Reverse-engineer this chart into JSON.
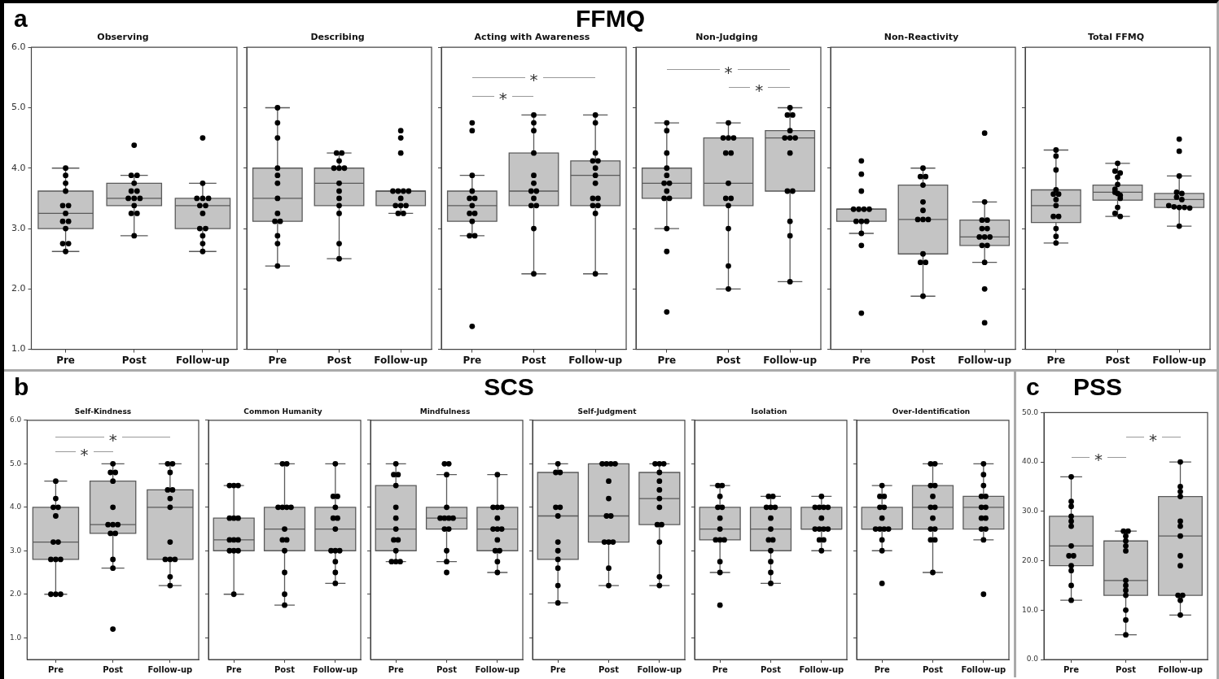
{
  "chart_data": [
    {
      "type": "box",
      "title": "Observing",
      "categories": [
        "Pre",
        "Post",
        "Follow-up"
      ],
      "ylim": [
        1,
        6
      ],
      "yticks": [
        {
          "value": 1,
          "label": "1.0"
        },
        {
          "value": 2,
          "label": "2.0"
        },
        {
          "value": 3,
          "label": "3.0"
        },
        {
          "value": 4,
          "label": "4.0"
        },
        {
          "value": 5,
          "label": "5.0"
        },
        {
          "value": 6,
          "label": "6.0"
        }
      ],
      "annotations": [
        "a",
        "FFMQ"
      ],
      "series": [
        {
          "type": "box",
          "color": "#c4c4c4",
          "boxes": [
            {
              "low": 2.62,
              "q1": 3.0,
              "median": 3.25,
              "q3": 3.62,
              "high": 4.0
            },
            {
              "low": 2.88,
              "q1": 3.38,
              "median": 3.5,
              "q3": 3.75,
              "high": 3.88
            },
            {
              "low": 2.62,
              "q1": 3.0,
              "median": 3.38,
              "q3": 3.5,
              "high": 3.75
            }
          ]
        },
        {
          "type": "scatter",
          "color": "#000000",
          "marker": "circle",
          "x": [
            "Pre",
            "Pre",
            "Pre",
            "Pre",
            "Pre",
            "Pre",
            "Pre",
            "Pre",
            "Pre",
            "Pre",
            "Pre",
            "Pre",
            "Pre",
            "Post",
            "Post",
            "Post",
            "Post",
            "Post",
            "Post",
            "Post",
            "Post",
            "Post",
            "Post",
            "Post",
            "Post",
            "Post",
            "Follow-up",
            "Follow-up",
            "Follow-up",
            "Follow-up",
            "Follow-up",
            "Follow-up",
            "Follow-up",
            "Follow-up",
            "Follow-up",
            "Follow-up",
            "Follow-up",
            "Follow-up",
            "Follow-up"
          ],
          "values": [
            4.0,
            3.88,
            3.75,
            3.62,
            3.38,
            3.38,
            3.25,
            3.12,
            3.12,
            3.0,
            2.75,
            2.75,
            2.62,
            4.38,
            3.88,
            3.88,
            3.75,
            3.62,
            3.62,
            3.5,
            3.5,
            3.5,
            3.38,
            3.25,
            3.25,
            2.88,
            4.5,
            3.75,
            3.5,
            3.5,
            3.5,
            3.38,
            3.38,
            3.25,
            3.0,
            3.0,
            2.88,
            2.75,
            2.62
          ]
        }
      ]
    },
    {
      "type": "box",
      "title": "Describing",
      "categories": [
        "Pre",
        "Post",
        "Follow-up"
      ],
      "ylim": [
        1,
        6
      ],
      "yticks": [
        {
          "value": 1,
          "label": null
        },
        {
          "value": 2,
          "label": null
        },
        {
          "value": 3,
          "label": null
        },
        {
          "value": 4,
          "label": null
        },
        {
          "value": 5,
          "label": null
        },
        {
          "value": 6,
          "label": null
        }
      ],
      "tick_labels": "x",
      "series": [
        {
          "type": "box",
          "color": "#c4c4c4",
          "boxes": [
            {
              "low": 2.38,
              "q1": 3.12,
              "median": 3.5,
              "q3": 4.0,
              "high": 5.0
            },
            {
              "low": 2.5,
              "q1": 3.38,
              "median": 3.75,
              "q3": 4.0,
              "high": 4.25
            },
            {
              "low": 3.25,
              "q1": 3.38,
              "median": 3.62,
              "q3": 3.62,
              "high": 3.62
            }
          ]
        },
        {
          "type": "scatter",
          "color": "#000000",
          "marker": "circle",
          "x": [
            "Pre",
            "Pre",
            "Pre",
            "Pre",
            "Pre",
            "Pre",
            "Pre",
            "Pre",
            "Pre",
            "Pre",
            "Pre",
            "Pre",
            "Pre",
            "Post",
            "Post",
            "Post",
            "Post",
            "Post",
            "Post",
            "Post",
            "Post",
            "Post",
            "Post",
            "Post",
            "Post",
            "Post",
            "Follow-up",
            "Follow-up",
            "Follow-up",
            "Follow-up",
            "Follow-up",
            "Follow-up",
            "Follow-up",
            "Follow-up",
            "Follow-up",
            "Follow-up",
            "Follow-up",
            "Follow-up",
            "Follow-up"
          ],
          "values": [
            5.0,
            4.75,
            4.5,
            4.0,
            3.88,
            3.75,
            3.5,
            3.25,
            3.12,
            3.12,
            2.88,
            2.75,
            2.38,
            4.25,
            4.25,
            4.12,
            4.0,
            4.0,
            4.0,
            3.75,
            3.62,
            3.5,
            3.38,
            3.25,
            2.75,
            2.5,
            4.62,
            4.5,
            4.25,
            3.62,
            3.62,
            3.62,
            3.62,
            3.5,
            3.38,
            3.38,
            3.38,
            3.25,
            3.25
          ]
        }
      ]
    },
    {
      "type": "box",
      "title": "Acting with Awareness",
      "categories": [
        "Pre",
        "Post",
        "Follow-up"
      ],
      "ylim": [
        1,
        6
      ],
      "yticks": [
        {
          "value": 1,
          "label": null
        },
        {
          "value": 2,
          "label": null
        },
        {
          "value": 3,
          "label": null
        },
        {
          "value": 4,
          "label": null
        },
        {
          "value": 5,
          "label": null
        },
        {
          "value": 6,
          "label": null
        }
      ],
      "tick_labels": "x",
      "annotations": [
        "*",
        "*"
      ],
      "series": [
        {
          "type": "box",
          "color": "#c4c4c4",
          "boxes": [
            {
              "low": 2.88,
              "q1": 3.12,
              "median": 3.38,
              "q3": 3.62,
              "high": 3.88
            },
            {
              "low": 2.25,
              "q1": 3.38,
              "median": 3.62,
              "q3": 4.25,
              "high": 4.88
            },
            {
              "low": 2.25,
              "q1": 3.38,
              "median": 3.88,
              "q3": 4.12,
              "high": 4.88
            }
          ]
        },
        {
          "type": "scatter",
          "color": "#000000",
          "marker": "circle",
          "x": [
            "Pre",
            "Pre",
            "Pre",
            "Pre",
            "Pre",
            "Pre",
            "Pre",
            "Pre",
            "Pre",
            "Pre",
            "Pre",
            "Pre",
            "Pre",
            "Post",
            "Post",
            "Post",
            "Post",
            "Post",
            "Post",
            "Post",
            "Post",
            "Post",
            "Post",
            "Post",
            "Post",
            "Post",
            "Follow-up",
            "Follow-up",
            "Follow-up",
            "Follow-up",
            "Follow-up",
            "Follow-up",
            "Follow-up",
            "Follow-up",
            "Follow-up",
            "Follow-up",
            "Follow-up",
            "Follow-up",
            "Follow-up",
            "Follow-up"
          ],
          "values": [
            4.75,
            4.62,
            3.88,
            3.62,
            3.5,
            3.5,
            3.38,
            3.25,
            3.25,
            3.12,
            2.88,
            2.88,
            1.38,
            4.88,
            4.75,
            4.62,
            4.25,
            3.88,
            3.75,
            3.62,
            3.62,
            3.5,
            3.38,
            3.38,
            3.0,
            2.25,
            4.88,
            4.75,
            4.25,
            4.12,
            4.12,
            4.0,
            3.88,
            3.75,
            3.5,
            3.5,
            3.38,
            3.38,
            3.25,
            2.25
          ]
        }
      ]
    },
    {
      "type": "box",
      "title": "Non-Judging",
      "categories": [
        "Pre",
        "Post",
        "Follow-up"
      ],
      "ylim": [
        1,
        6
      ],
      "yticks": [
        {
          "value": 1,
          "label": null
        },
        {
          "value": 2,
          "label": null
        },
        {
          "value": 3,
          "label": null
        },
        {
          "value": 4,
          "label": null
        },
        {
          "value": 5,
          "label": null
        },
        {
          "value": 6,
          "label": null
        }
      ],
      "tick_labels": "x",
      "annotations": [
        "*",
        "*"
      ],
      "series": [
        {
          "type": "box",
          "color": "#c4c4c4",
          "boxes": [
            {
              "low": 3.0,
              "q1": 3.5,
              "median": 3.75,
              "q3": 4.0,
              "high": 4.75
            },
            {
              "low": 2.0,
              "q1": 3.38,
              "median": 3.75,
              "q3": 4.5,
              "high": 4.75
            },
            {
              "low": 2.12,
              "q1": 3.62,
              "median": 4.5,
              "q3": 4.62,
              "high": 5.0
            }
          ]
        },
        {
          "type": "scatter",
          "color": "#000000",
          "marker": "circle",
          "x": [
            "Pre",
            "Pre",
            "Pre",
            "Pre",
            "Pre",
            "Pre",
            "Pre",
            "Pre",
            "Pre",
            "Pre",
            "Pre",
            "Pre",
            "Pre",
            "Post",
            "Post",
            "Post",
            "Post",
            "Post",
            "Post",
            "Post",
            "Post",
            "Post",
            "Post",
            "Post",
            "Post",
            "Post",
            "Follow-up",
            "Follow-up",
            "Follow-up",
            "Follow-up",
            "Follow-up",
            "Follow-up",
            "Follow-up",
            "Follow-up",
            "Follow-up",
            "Follow-up",
            "Follow-up",
            "Follow-up",
            "Follow-up"
          ],
          "values": [
            4.75,
            4.62,
            4.25,
            4.0,
            3.88,
            3.75,
            3.75,
            3.62,
            3.5,
            3.5,
            3.0,
            2.62,
            1.62,
            4.75,
            4.5,
            4.5,
            4.5,
            4.25,
            4.25,
            3.75,
            3.5,
            3.5,
            3.38,
            3.0,
            2.38,
            2.0,
            5.0,
            4.88,
            4.88,
            4.62,
            4.5,
            4.5,
            4.5,
            4.25,
            3.62,
            3.62,
            3.12,
            2.88,
            2.12
          ]
        }
      ]
    },
    {
      "type": "box",
      "title": "Non-Reactivity",
      "categories": [
        "Pre",
        "Post",
        "Follow-up"
      ],
      "ylim": [
        1,
        6
      ],
      "yticks": [
        {
          "value": 1,
          "label": null
        },
        {
          "value": 2,
          "label": null
        },
        {
          "value": 3,
          "label": null
        },
        {
          "value": 4,
          "label": null
        },
        {
          "value": 5,
          "label": null
        },
        {
          "value": 6,
          "label": null
        }
      ],
      "tick_labels": "x",
      "series": [
        {
          "type": "box",
          "color": "#c4c4c4",
          "boxes": [
            {
              "low": 2.92,
              "q1": 3.12,
              "median": 3.32,
              "q3": 3.32,
              "high": 3.32
            },
            {
              "low": 1.88,
              "q1": 2.58,
              "median": 3.15,
              "q3": 3.72,
              "high": 4.0
            },
            {
              "low": 2.44,
              "q1": 2.72,
              "median": 2.86,
              "q3": 3.14,
              "high": 3.44
            }
          ]
        },
        {
          "type": "scatter",
          "color": "#000000",
          "marker": "circle",
          "x": [
            "Pre",
            "Pre",
            "Pre",
            "Pre",
            "Pre",
            "Pre",
            "Pre",
            "Pre",
            "Pre",
            "Pre",
            "Pre",
            "Pre",
            "Pre",
            "Post",
            "Post",
            "Post",
            "Post",
            "Post",
            "Post",
            "Post",
            "Post",
            "Post",
            "Post",
            "Post",
            "Post",
            "Post",
            "Follow-up",
            "Follow-up",
            "Follow-up",
            "Follow-up",
            "Follow-up",
            "Follow-up",
            "Follow-up",
            "Follow-up",
            "Follow-up",
            "Follow-up",
            "Follow-up",
            "Follow-up",
            "Follow-up",
            "Follow-up"
          ],
          "values": [
            4.12,
            3.9,
            3.62,
            3.32,
            3.32,
            3.32,
            3.32,
            3.12,
            3.12,
            3.12,
            2.92,
            2.72,
            1.6,
            4.0,
            3.86,
            3.86,
            3.72,
            3.44,
            3.3,
            3.15,
            3.15,
            3.15,
            2.58,
            2.44,
            2.44,
            1.88,
            4.58,
            3.44,
            3.14,
            3.14,
            3.0,
            3.0,
            2.86,
            2.86,
            2.86,
            2.72,
            2.72,
            2.44,
            2.0,
            1.44
          ]
        }
      ]
    },
    {
      "type": "box",
      "title": "Total FFMQ",
      "categories": [
        "Pre",
        "Post",
        "Follow-up"
      ],
      "ylim": [
        1,
        6
      ],
      "yticks": [
        {
          "value": 1,
          "label": null
        },
        {
          "value": 2,
          "label": null
        },
        {
          "value": 3,
          "label": null
        },
        {
          "value": 4,
          "label": null
        },
        {
          "value": 5,
          "label": null
        },
        {
          "value": 6,
          "label": null
        }
      ],
      "tick_labels": "x",
      "series": [
        {
          "type": "box",
          "color": "#c4c4c4",
          "boxes": [
            {
              "low": 2.76,
              "q1": 3.1,
              "median": 3.38,
              "q3": 3.64,
              "high": 4.3
            },
            {
              "low": 3.2,
              "q1": 3.47,
              "median": 3.6,
              "q3": 3.72,
              "high": 4.08
            },
            {
              "low": 3.04,
              "q1": 3.35,
              "median": 3.48,
              "q3": 3.58,
              "high": 3.87
            }
          ]
        },
        {
          "type": "scatter",
          "color": "#000000",
          "marker": "circle",
          "x": [
            "Pre",
            "Pre",
            "Pre",
            "Pre",
            "Pre",
            "Pre",
            "Pre",
            "Pre",
            "Pre",
            "Pre",
            "Pre",
            "Pre",
            "Pre",
            "Post",
            "Post",
            "Post",
            "Post",
            "Post",
            "Post",
            "Post",
            "Post",
            "Post",
            "Post",
            "Post",
            "Post",
            "Post",
            "Follow-up",
            "Follow-up",
            "Follow-up",
            "Follow-up",
            "Follow-up",
            "Follow-up",
            "Follow-up",
            "Follow-up",
            "Follow-up",
            "Follow-up",
            "Follow-up",
            "Follow-up",
            "Follow-up"
          ],
          "values": [
            4.3,
            4.2,
            3.97,
            3.64,
            3.57,
            3.57,
            3.48,
            3.38,
            3.2,
            3.2,
            3.0,
            2.87,
            2.76,
            4.08,
            3.95,
            3.92,
            3.85,
            3.73,
            3.65,
            3.6,
            3.58,
            3.55,
            3.5,
            3.35,
            3.25,
            3.2,
            4.48,
            4.28,
            3.87,
            3.6,
            3.58,
            3.52,
            3.48,
            3.38,
            3.36,
            3.35,
            3.35,
            3.34,
            3.04
          ]
        }
      ]
    },
    {
      "type": "box",
      "title": "Self-Kindness",
      "categories": [
        "Pre",
        "Post",
        "Follow-up"
      ],
      "ylim": [
        0.5,
        6
      ],
      "yticks": [
        {
          "value": 1,
          "label": "1.0"
        },
        {
          "value": 2,
          "label": "2.0"
        },
        {
          "value": 3,
          "label": "3.0"
        },
        {
          "value": 4,
          "label": "4.0"
        },
        {
          "value": 5,
          "label": "5.0"
        },
        {
          "value": 6,
          "label": "6.0"
        }
      ],
      "annotations": [
        "b",
        "SCS",
        "*",
        "*"
      ],
      "series": [
        {
          "type": "box",
          "color": "#c4c4c4",
          "boxes": [
            {
              "low": 2.0,
              "q1": 2.8,
              "median": 3.2,
              "q3": 4.0,
              "high": 4.6
            },
            {
              "low": 2.6,
              "q1": 3.4,
              "median": 3.6,
              "q3": 4.6,
              "high": 5.0
            },
            {
              "low": 2.2,
              "q1": 2.8,
              "median": 4.0,
              "q3": 4.4,
              "high": 5.0
            }
          ]
        },
        {
          "type": "scatter",
          "color": "#000000",
          "marker": "circle",
          "x": [
            "Pre",
            "Pre",
            "Pre",
            "Pre",
            "Pre",
            "Pre",
            "Pre",
            "Pre",
            "Pre",
            "Pre",
            "Pre",
            "Pre",
            "Pre",
            "Post",
            "Post",
            "Post",
            "Post",
            "Post",
            "Post",
            "Post",
            "Post",
            "Post",
            "Post",
            "Post",
            "Post",
            "Post",
            "Follow-up",
            "Follow-up",
            "Follow-up",
            "Follow-up",
            "Follow-up",
            "Follow-up",
            "Follow-up",
            "Follow-up",
            "Follow-up",
            "Follow-up",
            "Follow-up",
            "Follow-up",
            "Follow-up"
          ],
          "values": [
            4.6,
            4.2,
            4.0,
            4.0,
            3.8,
            3.2,
            3.2,
            2.8,
            2.8,
            2.8,
            2.0,
            2.0,
            2.0,
            5.0,
            4.8,
            4.8,
            4.6,
            4.0,
            3.6,
            3.6,
            3.6,
            3.4,
            3.4,
            2.8,
            2.6,
            1.2,
            5.0,
            5.0,
            4.8,
            4.4,
            4.4,
            4.2,
            4.0,
            3.2,
            2.8,
            2.8,
            2.8,
            2.4,
            2.2
          ]
        }
      ]
    },
    {
      "type": "box",
      "title": "Common Humanity",
      "categories": [
        "Pre",
        "Post",
        "Follow-up"
      ],
      "ylim": [
        0.5,
        6
      ],
      "yticks": [
        {
          "value": 1,
          "label": null
        },
        {
          "value": 2,
          "label": null
        },
        {
          "value": 3,
          "label": null
        },
        {
          "value": 4,
          "label": null
        },
        {
          "value": 5,
          "label": null
        },
        {
          "value": 6,
          "label": null
        }
      ],
      "tick_labels": "x",
      "series": [
        {
          "type": "box",
          "color": "#c4c4c4",
          "boxes": [
            {
              "low": 2.0,
              "q1": 3.0,
              "median": 3.25,
              "q3": 3.75,
              "high": 4.5
            },
            {
              "low": 1.75,
              "q1": 3.0,
              "median": 3.5,
              "q3": 4.0,
              "high": 5.0
            },
            {
              "low": 2.25,
              "q1": 3.0,
              "median": 3.5,
              "q3": 4.0,
              "high": 5.0
            }
          ]
        },
        {
          "type": "scatter",
          "color": "#000000",
          "marker": "circle",
          "x": [
            "Pre",
            "Pre",
            "Pre",
            "Pre",
            "Pre",
            "Pre",
            "Pre",
            "Pre",
            "Pre",
            "Pre",
            "Pre",
            "Pre",
            "Pre",
            "Post",
            "Post",
            "Post",
            "Post",
            "Post",
            "Post",
            "Post",
            "Post",
            "Post",
            "Post",
            "Post",
            "Post",
            "Post",
            "Follow-up",
            "Follow-up",
            "Follow-up",
            "Follow-up",
            "Follow-up",
            "Follow-up",
            "Follow-up",
            "Follow-up",
            "Follow-up",
            "Follow-up",
            "Follow-up",
            "Follow-up",
            "Follow-up"
          ],
          "values": [
            4.5,
            4.5,
            4.5,
            3.75,
            3.75,
            3.75,
            3.25,
            3.25,
            3.25,
            3.0,
            3.0,
            3.0,
            2.0,
            5.0,
            5.0,
            4.0,
            4.0,
            4.0,
            4.0,
            3.5,
            3.25,
            3.25,
            3.0,
            2.5,
            2.0,
            1.75,
            5.0,
            4.25,
            4.25,
            4.0,
            3.75,
            3.75,
            3.5,
            3.0,
            3.0,
            3.0,
            2.75,
            2.5,
            2.25
          ]
        }
      ]
    },
    {
      "type": "box",
      "title": "Mindfulness",
      "categories": [
        "Pre",
        "Post",
        "Follow-up"
      ],
      "ylim": [
        0.5,
        6
      ],
      "yticks": [
        {
          "value": 1,
          "label": null
        },
        {
          "value": 2,
          "label": null
        },
        {
          "value": 3,
          "label": null
        },
        {
          "value": 4,
          "label": null
        },
        {
          "value": 5,
          "label": null
        },
        {
          "value": 6,
          "label": null
        }
      ],
      "tick_labels": "x",
      "series": [
        {
          "type": "box",
          "color": "#c4c4c4",
          "boxes": [
            {
              "low": 2.75,
              "q1": 3.0,
              "median": 3.5,
              "q3": 4.5,
              "high": 5.0
            },
            {
              "low": 2.75,
              "q1": 3.5,
              "median": 3.75,
              "q3": 4.0,
              "high": 4.75
            },
            {
              "low": 2.5,
              "q1": 3.0,
              "median": 3.5,
              "q3": 4.0,
              "high": 4.75
            }
          ]
        },
        {
          "type": "scatter",
          "color": "#000000",
          "marker": "circle",
          "x": [
            "Pre",
            "Pre",
            "Pre",
            "Pre",
            "Pre",
            "Pre",
            "Pre",
            "Pre",
            "Pre",
            "Pre",
            "Pre",
            "Pre",
            "Pre",
            "Post",
            "Post",
            "Post",
            "Post",
            "Post",
            "Post",
            "Post",
            "Post",
            "Post",
            "Post",
            "Post",
            "Post",
            "Post",
            "Follow-up",
            "Follow-up",
            "Follow-up",
            "Follow-up",
            "Follow-up",
            "Follow-up",
            "Follow-up",
            "Follow-up",
            "Follow-up",
            "Follow-up",
            "Follow-up",
            "Follow-up",
            "Follow-up"
          ],
          "values": [
            5.0,
            4.75,
            4.75,
            4.5,
            4.0,
            3.75,
            3.5,
            3.25,
            3.25,
            3.0,
            2.75,
            2.75,
            2.75,
            5.0,
            5.0,
            4.75,
            4.0,
            3.75,
            3.75,
            3.75,
            3.75,
            3.5,
            3.5,
            3.0,
            2.75,
            2.5,
            4.75,
            4.0,
            4.0,
            4.0,
            3.75,
            3.5,
            3.5,
            3.5,
            3.25,
            3.0,
            3.0,
            2.75,
            2.5
          ]
        }
      ]
    },
    {
      "type": "box",
      "title": "Self-Judgment",
      "categories": [
        "Pre",
        "Post",
        "Follow-up"
      ],
      "ylim": [
        0.5,
        6
      ],
      "yticks": [
        {
          "value": 1,
          "label": null
        },
        {
          "value": 2,
          "label": null
        },
        {
          "value": 3,
          "label": null
        },
        {
          "value": 4,
          "label": null
        },
        {
          "value": 5,
          "label": null
        },
        {
          "value": 6,
          "label": null
        }
      ],
      "tick_labels": "x",
      "series": [
        {
          "type": "box",
          "color": "#c4c4c4",
          "boxes": [
            {
              "low": 1.8,
              "q1": 2.8,
              "median": 3.8,
              "q3": 4.8,
              "high": 5.0
            },
            {
              "low": 2.2,
              "q1": 3.2,
              "median": 3.8,
              "q3": 5.0,
              "high": 5.0
            },
            {
              "low": 2.2,
              "q1": 3.6,
              "median": 4.2,
              "q3": 4.8,
              "high": 5.0
            }
          ]
        },
        {
          "type": "scatter",
          "color": "#000000",
          "marker": "circle",
          "x": [
            "Pre",
            "Pre",
            "Pre",
            "Pre",
            "Pre",
            "Pre",
            "Pre",
            "Pre",
            "Pre",
            "Pre",
            "Pre",
            "Pre",
            "Post",
            "Post",
            "Post",
            "Post",
            "Post",
            "Post",
            "Post",
            "Post",
            "Post",
            "Post",
            "Post",
            "Post",
            "Post",
            "Follow-up",
            "Follow-up",
            "Follow-up",
            "Follow-up",
            "Follow-up",
            "Follow-up",
            "Follow-up",
            "Follow-up",
            "Follow-up",
            "Follow-up",
            "Follow-up",
            "Follow-up",
            "Follow-up"
          ],
          "values": [
            5.0,
            4.8,
            4.8,
            4.0,
            4.0,
            3.8,
            3.2,
            3.0,
            2.8,
            2.6,
            2.2,
            1.8,
            5.0,
            5.0,
            5.0,
            5.0,
            4.6,
            4.2,
            3.8,
            3.8,
            3.2,
            3.2,
            3.2,
            2.6,
            2.2,
            5.0,
            5.0,
            5.0,
            4.8,
            4.6,
            4.4,
            4.2,
            4.0,
            3.6,
            3.6,
            3.2,
            2.4,
            2.2
          ]
        }
      ]
    },
    {
      "type": "box",
      "title": "Isolation",
      "categories": [
        "Pre",
        "Post",
        "Follow-up"
      ],
      "ylim": [
        0.5,
        6
      ],
      "yticks": [
        {
          "value": 1,
          "label": null
        },
        {
          "value": 2,
          "label": null
        },
        {
          "value": 3,
          "label": null
        },
        {
          "value": 4,
          "label": null
        },
        {
          "value": 5,
          "label": null
        },
        {
          "value": 6,
          "label": null
        }
      ],
      "tick_labels": "x",
      "series": [
        {
          "type": "box",
          "color": "#c4c4c4",
          "boxes": [
            {
              "low": 2.5,
              "q1": 3.25,
              "median": 3.5,
              "q3": 4.0,
              "high": 4.5
            },
            {
              "low": 2.25,
              "q1": 3.0,
              "median": 3.5,
              "q3": 4.0,
              "high": 4.25
            },
            {
              "low": 3.0,
              "q1": 3.5,
              "median": 3.5,
              "q3": 4.0,
              "high": 4.25
            }
          ]
        },
        {
          "type": "scatter",
          "color": "#000000",
          "marker": "circle",
          "x": [
            "Pre",
            "Pre",
            "Pre",
            "Pre",
            "Pre",
            "Pre",
            "Pre",
            "Pre",
            "Pre",
            "Pre",
            "Pre",
            "Pre",
            "Pre",
            "Post",
            "Post",
            "Post",
            "Post",
            "Post",
            "Post",
            "Post",
            "Post",
            "Post",
            "Post",
            "Post",
            "Post",
            "Post",
            "Follow-up",
            "Follow-up",
            "Follow-up",
            "Follow-up",
            "Follow-up",
            "Follow-up",
            "Follow-up",
            "Follow-up",
            "Follow-up",
            "Follow-up",
            "Follow-up",
            "Follow-up",
            "Follow-up"
          ],
          "values": [
            4.5,
            4.5,
            4.25,
            4.0,
            4.0,
            3.75,
            3.5,
            3.25,
            3.25,
            3.25,
            2.75,
            2.5,
            1.75,
            4.25,
            4.25,
            4.0,
            4.0,
            4.0,
            3.75,
            3.5,
            3.25,
            3.25,
            3.0,
            2.75,
            2.5,
            2.25,
            4.25,
            4.0,
            4.0,
            4.0,
            4.0,
            3.75,
            3.5,
            3.5,
            3.5,
            3.5,
            3.25,
            3.25,
            3.0
          ]
        }
      ]
    },
    {
      "type": "box",
      "title": "Over-Identification",
      "categories": [
        "Pre",
        "Post",
        "Follow-up"
      ],
      "ylim": [
        0.5,
        6
      ],
      "yticks": [
        {
          "value": 1,
          "label": null
        },
        {
          "value": 2,
          "label": null
        },
        {
          "value": 3,
          "label": null
        },
        {
          "value": 4,
          "label": null
        },
        {
          "value": 5,
          "label": null
        },
        {
          "value": 6,
          "label": null
        }
      ],
      "tick_labels": "x",
      "series": [
        {
          "type": "box",
          "color": "#c4c4c4",
          "boxes": [
            {
              "low": 3.0,
              "q1": 3.5,
              "median": 3.5,
              "q3": 4.0,
              "high": 4.5
            },
            {
              "low": 2.5,
              "q1": 3.5,
              "median": 4.0,
              "q3": 4.5,
              "high": 5.0
            },
            {
              "low": 3.25,
              "q1": 3.5,
              "median": 4.0,
              "q3": 4.25,
              "high": 5.0
            }
          ]
        },
        {
          "type": "scatter",
          "color": "#000000",
          "marker": "circle",
          "x": [
            "Pre",
            "Pre",
            "Pre",
            "Pre",
            "Pre",
            "Pre",
            "Pre",
            "Pre",
            "Pre",
            "Pre",
            "Pre",
            "Pre",
            "Pre",
            "Post",
            "Post",
            "Post",
            "Post",
            "Post",
            "Post",
            "Post",
            "Post",
            "Post",
            "Post",
            "Post",
            "Post",
            "Post",
            "Follow-up",
            "Follow-up",
            "Follow-up",
            "Follow-up",
            "Follow-up",
            "Follow-up",
            "Follow-up",
            "Follow-up",
            "Follow-up",
            "Follow-up",
            "Follow-up",
            "Follow-up",
            "Follow-up"
          ],
          "values": [
            4.5,
            4.25,
            4.25,
            4.0,
            4.0,
            3.75,
            3.5,
            3.5,
            3.5,
            3.5,
            3.25,
            3.0,
            2.25,
            5.0,
            5.0,
            4.5,
            4.5,
            4.25,
            4.0,
            4.0,
            3.75,
            3.5,
            3.5,
            3.25,
            3.25,
            2.5,
            5.0,
            4.75,
            4.5,
            4.25,
            4.25,
            4.0,
            4.0,
            3.75,
            3.75,
            3.5,
            3.5,
            3.25,
            2.0
          ]
        }
      ]
    },
    {
      "type": "box",
      "title": "PSS",
      "categories": [
        "Pre",
        "Post",
        "Follow-up"
      ],
      "ylim": [
        0,
        50
      ],
      "yticks": [
        {
          "value": 0,
          "label": "0.0"
        },
        {
          "value": 10,
          "label": "10.0"
        },
        {
          "value": 20,
          "label": "20.0"
        },
        {
          "value": 30,
          "label": "30.0"
        },
        {
          "value": 40,
          "label": "40.0"
        },
        {
          "value": 50,
          "label": "50.0"
        }
      ],
      "annotations": [
        "c",
        "*",
        "*"
      ],
      "series": [
        {
          "type": "box",
          "color": "#c4c4c4",
          "boxes": [
            {
              "low": 12,
              "q1": 19,
              "median": 23,
              "q3": 29,
              "high": 37
            },
            {
              "low": 5,
              "q1": 13,
              "median": 16,
              "q3": 24,
              "high": 26
            },
            {
              "low": 9,
              "q1": 13,
              "median": 25,
              "q3": 33,
              "high": 40
            }
          ]
        },
        {
          "type": "scatter",
          "color": "#000000",
          "marker": "circle",
          "x": [
            "Pre",
            "Pre",
            "Pre",
            "Pre",
            "Pre",
            "Pre",
            "Pre",
            "Pre",
            "Pre",
            "Pre",
            "Pre",
            "Pre",
            "Pre",
            "Post",
            "Post",
            "Post",
            "Post",
            "Post",
            "Post",
            "Post",
            "Post",
            "Post",
            "Post",
            "Post",
            "Post",
            "Post",
            "Follow-up",
            "Follow-up",
            "Follow-up",
            "Follow-up",
            "Follow-up",
            "Follow-up",
            "Follow-up",
            "Follow-up",
            "Follow-up",
            "Follow-up",
            "Follow-up",
            "Follow-up",
            "Follow-up"
          ],
          "values": [
            37,
            32,
            31,
            29,
            28,
            27,
            23,
            21,
            21,
            19,
            18,
            15,
            12,
            26,
            26,
            25,
            24,
            23,
            22,
            16,
            15,
            14,
            13,
            10,
            8,
            5,
            40,
            35,
            34,
            33,
            28,
            27,
            25,
            21,
            19,
            13,
            13,
            12,
            9
          ]
        }
      ]
    }
  ]
}
